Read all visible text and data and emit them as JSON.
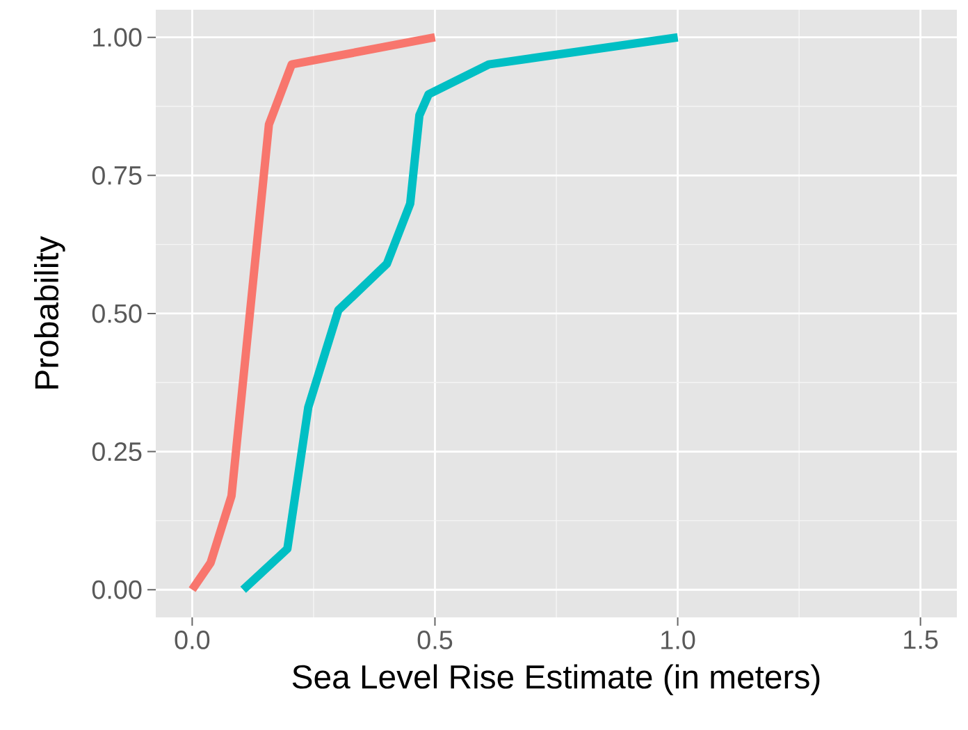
{
  "chart_data": {
    "type": "line",
    "xlabel": "Sea Level Rise Estimate (in meters)",
    "ylabel": "Probability",
    "xlim": [
      -0.075,
      1.575
    ],
    "ylim": [
      -0.05,
      1.05
    ],
    "xticks": [
      {
        "value": 0,
        "label": "0.0"
      },
      {
        "value": 0.5,
        "label": "0.5"
      },
      {
        "value": 1,
        "label": "1.0"
      },
      {
        "value": 1.5,
        "label": "1.5"
      }
    ],
    "yticks": [
      {
        "value": 0,
        "label": "0.00"
      },
      {
        "value": 0.25,
        "label": "0.25"
      },
      {
        "value": 0.5,
        "label": "0.50"
      },
      {
        "value": 0.75,
        "label": "0.75"
      },
      {
        "value": 1,
        "label": "1.00"
      }
    ],
    "grid": true,
    "marker": "none",
    "line_style": "solid",
    "series": [
      {
        "color": "#f8766d",
        "x": [
          0,
          0.038,
          0.081,
          0.158,
          0.205,
          0.5
        ],
        "values": [
          0,
          0.049,
          0.17,
          0.842,
          0.951,
          1.0
        ]
      },
      {
        "color": "#00bfc4",
        "x": [
          0.105,
          0.196,
          0.239,
          0.301,
          0.401,
          0.449,
          0.468,
          0.487,
          0.611,
          1.0
        ],
        "values": [
          0,
          0.074,
          0.33,
          0.506,
          0.59,
          0.699,
          0.859,
          0.897,
          0.951,
          1.0
        ]
      }
    ]
  }
}
